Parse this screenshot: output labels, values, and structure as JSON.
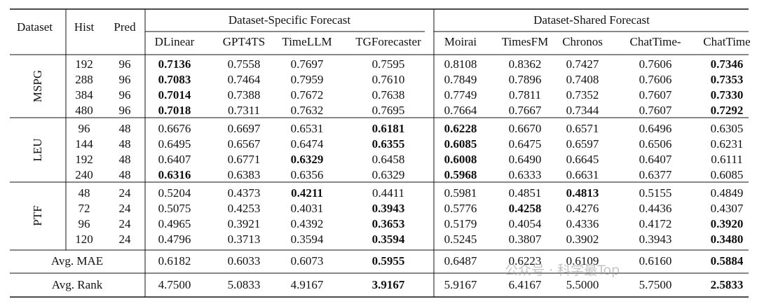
{
  "header": {
    "dataset": "Dataset",
    "hist": "Hist",
    "pred": "Pred",
    "group_specific": "Dataset-Specific Forecast",
    "group_shared": "Dataset-Shared Forecast",
    "models": [
      "DLinear",
      "GPT4TS",
      "TimeLLM",
      "TGForecaster",
      "Moirai",
      "TimesFM",
      "Chronos",
      "ChatTime-",
      "ChatTime"
    ]
  },
  "groups": [
    {
      "name": "MSPG",
      "rows": [
        {
          "hist": "192",
          "pred": "96",
          "values": [
            "0.7136",
            "0.7558",
            "0.7697",
            "0.7595",
            "0.8108",
            "0.8362",
            "0.7427",
            "0.7606",
            "0.7346"
          ],
          "bold": [
            0,
            8
          ]
        },
        {
          "hist": "288",
          "pred": "96",
          "values": [
            "0.7083",
            "0.7464",
            "0.7959",
            "0.7610",
            "0.7849",
            "0.7896",
            "0.7408",
            "0.7606",
            "0.7353"
          ],
          "bold": [
            0,
            8
          ]
        },
        {
          "hist": "384",
          "pred": "96",
          "values": [
            "0.7014",
            "0.7388",
            "0.7672",
            "0.7638",
            "0.7749",
            "0.7811",
            "0.7352",
            "0.7607",
            "0.7330"
          ],
          "bold": [
            0,
            8
          ]
        },
        {
          "hist": "480",
          "pred": "96",
          "values": [
            "0.7018",
            "0.7311",
            "0.7632",
            "0.7695",
            "0.7664",
            "0.7667",
            "0.7344",
            "0.7607",
            "0.7292"
          ],
          "bold": [
            0,
            8
          ]
        }
      ]
    },
    {
      "name": "LEU",
      "rows": [
        {
          "hist": "96",
          "pred": "48",
          "values": [
            "0.6676",
            "0.6697",
            "0.6531",
            "0.6181",
            "0.6228",
            "0.6670",
            "0.6571",
            "0.6496",
            "0.6305"
          ],
          "bold": [
            3,
            4
          ]
        },
        {
          "hist": "144",
          "pred": "48",
          "values": [
            "0.6495",
            "0.6567",
            "0.6474",
            "0.6355",
            "0.6085",
            "0.6475",
            "0.6597",
            "0.6506",
            "0.6231"
          ],
          "bold": [
            3,
            4
          ]
        },
        {
          "hist": "192",
          "pred": "48",
          "values": [
            "0.6407",
            "0.6771",
            "0.6329",
            "0.6458",
            "0.6008",
            "0.6490",
            "0.6645",
            "0.6407",
            "0.6111"
          ],
          "bold": [
            2,
            4
          ]
        },
        {
          "hist": "240",
          "pred": "48",
          "values": [
            "0.6316",
            "0.6383",
            "0.6356",
            "0.6329",
            "0.5968",
            "0.6333",
            "0.6631",
            "0.6377",
            "0.6085"
          ],
          "bold": [
            0,
            4
          ]
        }
      ]
    },
    {
      "name": "PTF",
      "rows": [
        {
          "hist": "48",
          "pred": "24",
          "values": [
            "0.5204",
            "0.4373",
            "0.4211",
            "0.4411",
            "0.5981",
            "0.4851",
            "0.4813",
            "0.5155",
            "0.4849"
          ],
          "bold": [
            2,
            6
          ]
        },
        {
          "hist": "72",
          "pred": "24",
          "values": [
            "0.5075",
            "0.4253",
            "0.4031",
            "0.3943",
            "0.5776",
            "0.4258",
            "0.4276",
            "0.4436",
            "0.4307"
          ],
          "bold": [
            3,
            5
          ]
        },
        {
          "hist": "96",
          "pred": "24",
          "values": [
            "0.4965",
            "0.3921",
            "0.4392",
            "0.3653",
            "0.5179",
            "0.4054",
            "0.4336",
            "0.4172",
            "0.3920"
          ],
          "bold": [
            3,
            8
          ]
        },
        {
          "hist": "120",
          "pred": "24",
          "values": [
            "0.4796",
            "0.3713",
            "0.3594",
            "0.3594",
            "0.5245",
            "0.3807",
            "0.3902",
            "0.3943",
            "0.3480"
          ],
          "bold": [
            3,
            8
          ]
        }
      ]
    }
  ],
  "summary": [
    {
      "label": "Avg. MAE",
      "values": [
        "0.6182",
        "0.6033",
        "0.6073",
        "0.5955",
        "0.6487",
        "0.6223",
        "0.6109",
        "0.6160",
        "0.5884"
      ],
      "bold": [
        3,
        8
      ]
    },
    {
      "label": "Avg. Rank",
      "values": [
        "4.7500",
        "5.0833",
        "4.9167",
        "3.9167",
        "5.9167",
        "6.4167",
        "5.5000",
        "5.7500",
        "2.5833"
      ],
      "bold": [
        3,
        8
      ]
    }
  ],
  "watermark": "公众号 · 科学最Top"
}
